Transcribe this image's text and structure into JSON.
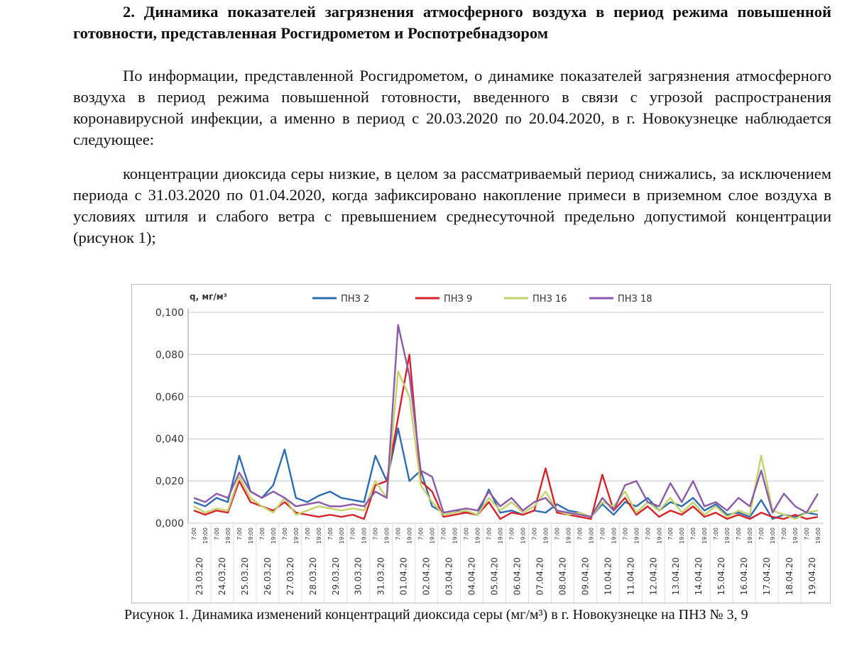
{
  "heading": "2. Динамика показателей загрязнения атмосферного воздуха в период режима повышенной готовности, представленная Росгидрометом и Роспотребнадзором",
  "paragraphs": [
    "По информации, представленной Росгидрометом, о динамике показателей загрязнения атмосферного воздуха в период режима повышенной готовности, введенного в связи с угрозой распространения коронавирусной инфекции, а именно в период с 20.03.2020 по 20.04.2020, в г. Новокузнецке наблюдается следующее:",
    "концентрации диоксида серы низкие, в целом за рассматриваемый период снижались, за исключением периода с 31.03.2020 по 01.04.2020, когда зафиксировано накопление примеси в приземном слое воздуха в условиях штиля и слабого ветра с превышением среднесуточной предельно допустимой концентрации (рисунок 1);"
  ],
  "chart_data": {
    "type": "line",
    "y_label": "q, мг/м³",
    "categories": [
      "7:00",
      "19:00",
      "7:00",
      "19:00",
      "7:00",
      "19:00",
      "7:00",
      "19:00",
      "7:00",
      "19:00",
      "7:00",
      "19:00",
      "7:00",
      "19:00",
      "7:00",
      "19:00",
      "7:00",
      "19:00",
      "7:00",
      "19:00",
      "7:00",
      "19:00",
      "7:00",
      "19:00",
      "7:00",
      "19:00",
      "7:00",
      "19:00",
      "7:00",
      "19:00",
      "7:00",
      "19:00",
      "7:00",
      "19:00",
      "7:00",
      "19:00",
      "7:00",
      "19:00",
      "7:00",
      "19:00",
      "7:00",
      "19:00",
      "7:00",
      "19:00",
      "7:00",
      "19:00",
      "7:00",
      "19:00",
      "7:00",
      "19:00",
      "7:00",
      "19:00",
      "7:00",
      "19:00",
      "7:00",
      "19:00"
    ],
    "dates": [
      "23.03.20",
      "24.03.20",
      "25.03.20",
      "26.03.20",
      "27.03.20",
      "28.03.20",
      "29.03.20",
      "30.03.20",
      "31.03.20",
      "01.04.20",
      "02.04.20",
      "03.04.20",
      "04.04.20",
      "05.04.20",
      "06.04.20",
      "07.04.20",
      "08.04.20",
      "09.04.20",
      "10.04.20",
      "11.04.20",
      "12.04.20",
      "13.04.20",
      "14.04.20",
      "15.04.20",
      "16.04.20",
      "17.04.20",
      "18.04.20",
      "19.04.20"
    ],
    "series": [
      {
        "name": "ПНЗ 2",
        "color": "#2e6db4",
        "values": [
          0.01,
          0.008,
          0.012,
          0.01,
          0.032,
          0.015,
          0.012,
          0.018,
          0.035,
          0.012,
          0.01,
          0.013,
          0.015,
          0.012,
          0.011,
          0.01,
          0.032,
          0.02,
          0.045,
          0.02,
          0.025,
          0.008,
          0.005,
          0.006,
          0.005,
          0.004,
          0.016,
          0.005,
          0.006,
          0.004,
          0.006,
          0.005,
          0.009,
          0.006,
          0.005,
          0.003,
          0.009,
          0.004,
          0.01,
          0.008,
          0.012,
          0.006,
          0.01,
          0.008,
          0.012,
          0.006,
          0.009,
          0.004,
          0.005,
          0.003,
          0.011,
          0.002,
          0.004,
          0.003,
          0.005,
          0.004
        ]
      },
      {
        "name": "ПНЗ 9",
        "color": "#d8232a",
        "values": [
          0.006,
          0.004,
          0.006,
          0.005,
          0.02,
          0.01,
          0.008,
          0.006,
          0.01,
          0.005,
          0.004,
          0.003,
          0.004,
          0.003,
          0.004,
          0.002,
          0.018,
          0.02,
          0.05,
          0.08,
          0.02,
          0.015,
          0.003,
          0.004,
          0.005,
          0.004,
          0.01,
          0.002,
          0.005,
          0.004,
          0.006,
          0.026,
          0.005,
          0.004,
          0.003,
          0.002,
          0.023,
          0.006,
          0.012,
          0.004,
          0.008,
          0.003,
          0.006,
          0.004,
          0.008,
          0.003,
          0.005,
          0.002,
          0.004,
          0.002,
          0.005,
          0.003,
          0.002,
          0.004,
          0.002,
          0.003
        ]
      },
      {
        "name": "ПНЗ 16",
        "color": "#c3d36a",
        "values": [
          0.008,
          0.005,
          0.007,
          0.006,
          0.022,
          0.012,
          0.008,
          0.005,
          0.012,
          0.004,
          0.006,
          0.008,
          0.007,
          0.006,
          0.007,
          0.006,
          0.02,
          0.012,
          0.072,
          0.06,
          0.018,
          0.01,
          0.004,
          0.005,
          0.006,
          0.004,
          0.012,
          0.006,
          0.01,
          0.005,
          0.008,
          0.015,
          0.006,
          0.004,
          0.005,
          0.003,
          0.01,
          0.008,
          0.015,
          0.005,
          0.01,
          0.006,
          0.012,
          0.005,
          0.01,
          0.004,
          0.008,
          0.003,
          0.006,
          0.004,
          0.032,
          0.006,
          0.004,
          0.002,
          0.005,
          0.006
        ]
      },
      {
        "name": "ПНЗ 18",
        "color": "#8c5aa8",
        "values": [
          0.012,
          0.01,
          0.014,
          0.012,
          0.024,
          0.015,
          0.012,
          0.015,
          0.012,
          0.008,
          0.009,
          0.01,
          0.008,
          0.008,
          0.009,
          0.008,
          0.015,
          0.012,
          0.094,
          0.07,
          0.025,
          0.022,
          0.005,
          0.006,
          0.007,
          0.006,
          0.015,
          0.008,
          0.012,
          0.006,
          0.01,
          0.012,
          0.006,
          0.005,
          0.004,
          0.003,
          0.012,
          0.006,
          0.018,
          0.02,
          0.01,
          0.008,
          0.019,
          0.01,
          0.02,
          0.008,
          0.01,
          0.006,
          0.012,
          0.008,
          0.025,
          0.005,
          0.014,
          0.008,
          0.005,
          0.014
        ]
      }
    ],
    "ylim": [
      0,
      0.1
    ],
    "yticks": [
      {
        "value": 0,
        "label": "0,000"
      },
      {
        "value": 0.02,
        "label": "0,020"
      },
      {
        "value": 0.04,
        "label": "0,040"
      },
      {
        "value": 0.06,
        "label": "0,060"
      },
      {
        "value": 0.08,
        "label": "0,080"
      },
      {
        "value": 0.1,
        "label": "0,100"
      }
    ],
    "grid": true
  },
  "caption": "Рисунок 1. Динамика изменений концентраций диоксида серы (мг/м³) в г. Новокузнецке на ПНЗ № 3, 9"
}
